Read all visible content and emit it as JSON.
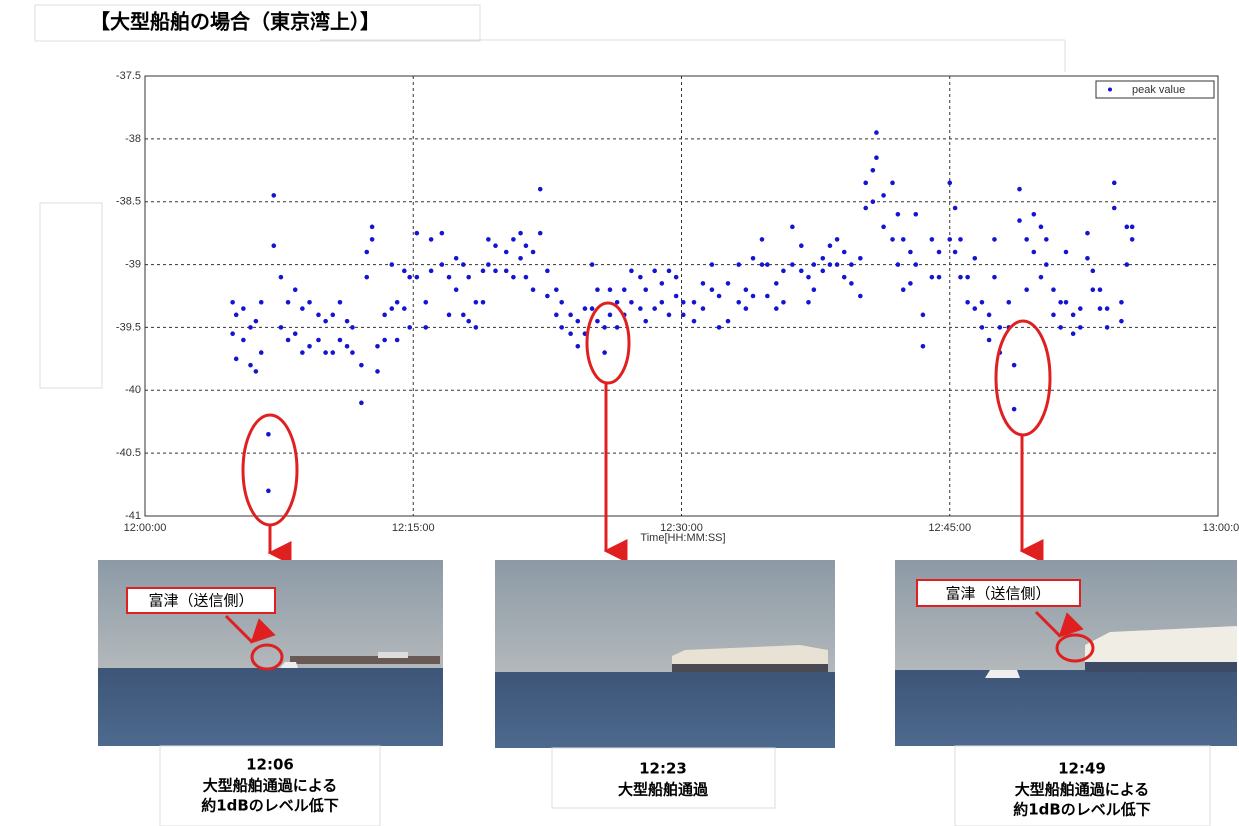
{
  "chart_data": {
    "type": "scatter",
    "title": "【大型船舶の場合（東京湾上）】",
    "x_label": "Time[HH:MM:SS]",
    "xlim": [
      0,
      60
    ],
    "xticks": [
      {
        "value": 0,
        "label": "12:00:00"
      },
      {
        "value": 15,
        "label": "12:15:00"
      },
      {
        "value": 30,
        "label": "12:30:00"
      },
      {
        "value": 45,
        "label": "12:45:00"
      },
      {
        "value": 60,
        "label": "13:00:00"
      }
    ],
    "ylim": [
      -41,
      -37.5
    ],
    "yticks": [
      -41,
      -40.5,
      -40,
      -39.5,
      -39,
      -38.5,
      -38,
      -37.5
    ],
    "grid": true,
    "legend": "upper-right",
    "series": [
      {
        "name": "peak value",
        "color": "#1414d2",
        "x": [
          4.9,
          4.9,
          5.1,
          5.1,
          5.5,
          5.5,
          5.9,
          5.9,
          6.2,
          6.2,
          6.5,
          6.5,
          6.9,
          6.9,
          7.2,
          7.2,
          7.6,
          7.6,
          8.0,
          8.0,
          8.4,
          8.4,
          8.8,
          8.8,
          9.2,
          9.2,
          9.7,
          9.7,
          10.1,
          10.1,
          10.5,
          10.5,
          10.9,
          10.9,
          11.3,
          11.3,
          11.6,
          11.6,
          12.1,
          12.1,
          12.4,
          12.4,
          12.7,
          12.7,
          13.0,
          13.0,
          13.4,
          13.4,
          13.8,
          13.8,
          14.1,
          14.1,
          14.5,
          14.5,
          14.8,
          14.8,
          15.2,
          15.2,
          15.7,
          15.7,
          16.0,
          16.0,
          16.6,
          16.6,
          17.0,
          17.0,
          17.4,
          17.4,
          17.8,
          17.8,
          18.1,
          18.1,
          18.5,
          18.5,
          18.9,
          18.9,
          19.2,
          19.2,
          19.6,
          19.6,
          20.2,
          20.2,
          20.6,
          20.6,
          21.0,
          21.0,
          21.3,
          21.3,
          21.7,
          21.7,
          22.1,
          22.1,
          22.5,
          22.5,
          23.0,
          23.0,
          23.3,
          23.3,
          23.8,
          23.8,
          24.2,
          24.2,
          24.6,
          24.6,
          25.0,
          25.0,
          25.3,
          25.3,
          25.7,
          25.7,
          26.0,
          26.0,
          26.4,
          26.4,
          26.8,
          26.8,
          27.2,
          27.2,
          27.7,
          27.7,
          28.0,
          28.0,
          28.5,
          28.5,
          28.9,
          28.9,
          29.3,
          29.3,
          29.7,
          29.7,
          30.1,
          30.1,
          30.7,
          30.7,
          31.2,
          31.2,
          31.7,
          31.7,
          32.1,
          32.1,
          32.6,
          32.6,
          33.2,
          33.2,
          33.6,
          33.6,
          34.0,
          34.0,
          34.5,
          34.5,
          34.8,
          34.8,
          35.3,
          35.3,
          35.7,
          35.7,
          36.2,
          36.2,
          36.7,
          36.7,
          37.1,
          37.1,
          37.4,
          37.4,
          37.9,
          37.9,
          38.3,
          38.3,
          38.7,
          38.7,
          39.1,
          39.1,
          39.5,
          39.5,
          40.0,
          40.0,
          40.3,
          40.3,
          40.7,
          40.7,
          40.9,
          40.9,
          41.3,
          41.3,
          41.8,
          41.8,
          42.1,
          42.1,
          42.4,
          42.4,
          42.8,
          42.8,
          43.1,
          43.1,
          43.5,
          43.5,
          44.0,
          44.0,
          44.4,
          44.4,
          45.0,
          45.0,
          45.3,
          45.3,
          45.6,
          45.6,
          46.0,
          46.0,
          46.4,
          46.4,
          46.8,
          46.8,
          47.2,
          47.2,
          47.5,
          47.5,
          47.8,
          47.8,
          48.3,
          48.3,
          48.6,
          48.6,
          48.9,
          48.9,
          49.3,
          49.3,
          49.7,
          49.7,
          50.1,
          50.1,
          50.4,
          50.4,
          50.8,
          50.8,
          51.2,
          51.2,
          51.5,
          51.5,
          51.9,
          51.9,
          52.3,
          52.3,
          52.7,
          52.7,
          53.0,
          53.0,
          53.4,
          53.4,
          53.8,
          53.8,
          54.2,
          54.2,
          54.6,
          54.6,
          54.9,
          54.9,
          55.2,
          55.2
        ],
        "values": [
          -39.3,
          -39.55,
          -39.4,
          -39.75,
          -39.35,
          -39.6,
          -39.5,
          -39.8,
          -39.45,
          -39.85,
          -39.3,
          -39.7,
          -40.35,
          -40.8,
          -38.45,
          -38.85,
          -39.1,
          -39.5,
          -39.3,
          -39.6,
          -39.2,
          -39.55,
          -39.35,
          -39.7,
          -39.3,
          -39.65,
          -39.4,
          -39.6,
          -39.45,
          -39.7,
          -39.4,
          -39.7,
          -39.3,
          -39.6,
          -39.45,
          -39.65,
          -39.5,
          -39.7,
          -39.8,
          -40.1,
          -38.9,
          -39.1,
          -38.7,
          -38.8,
          -39.65,
          -39.85,
          -39.4,
          -39.6,
          -39.0,
          -39.35,
          -39.3,
          -39.6,
          -39.05,
          -39.35,
          -39.1,
          -39.5,
          -38.75,
          -39.1,
          -39.3,
          -39.5,
          -38.8,
          -39.05,
          -38.75,
          -39.0,
          -39.1,
          -39.4,
          -38.95,
          -39.2,
          -39.0,
          -39.4,
          -39.1,
          -39.45,
          -39.3,
          -39.5,
          -39.05,
          -39.3,
          -38.8,
          -39.0,
          -38.85,
          -39.05,
          -38.9,
          -39.05,
          -38.8,
          -39.1,
          -38.75,
          -38.95,
          -38.85,
          -39.1,
          -38.9,
          -39.2,
          -38.4,
          -38.75,
          -39.05,
          -39.25,
          -39.2,
          -39.4,
          -39.3,
          -39.5,
          -39.4,
          -39.55,
          -39.45,
          -39.65,
          -39.35,
          -39.55,
          -39.0,
          -39.35,
          -39.2,
          -39.45,
          -39.5,
          -39.7,
          -39.2,
          -39.4,
          -39.3,
          -39.5,
          -39.2,
          -39.4,
          -39.05,
          -39.3,
          -39.1,
          -39.35,
          -39.2,
          -39.45,
          -39.05,
          -39.35,
          -39.15,
          -39.3,
          -39.05,
          -39.4,
          -39.1,
          -39.25,
          -39.3,
          -39.4,
          -39.3,
          -39.45,
          -39.15,
          -39.35,
          -39.0,
          -39.2,
          -39.25,
          -39.5,
          -39.15,
          -39.45,
          -39.0,
          -39.3,
          -39.2,
          -39.35,
          -38.95,
          -39.25,
          -38.8,
          -39.0,
          -39.0,
          -39.25,
          -39.15,
          -39.35,
          -39.05,
          -39.3,
          -38.7,
          -39.0,
          -38.85,
          -39.05,
          -39.1,
          -39.3,
          -39.0,
          -39.2,
          -38.95,
          -39.05,
          -38.85,
          -39.0,
          -38.8,
          -39.0,
          -38.9,
          -39.1,
          -39.0,
          -39.15,
          -38.95,
          -39.25,
          -38.35,
          -38.55,
          -38.25,
          -38.5,
          -37.95,
          -38.15,
          -38.45,
          -38.7,
          -38.35,
          -38.8,
          -38.6,
          -39.0,
          -38.8,
          -39.2,
          -38.9,
          -39.15,
          -38.6,
          -39.0,
          -39.4,
          -39.65,
          -38.8,
          -39.1,
          -38.9,
          -39.1,
          -38.35,
          -38.8,
          -38.55,
          -38.9,
          -38.8,
          -39.1,
          -39.1,
          -39.3,
          -38.95,
          -39.35,
          -39.3,
          -39.5,
          -39.4,
          -39.6,
          -38.8,
          -39.1,
          -39.5,
          -39.7,
          -39.3,
          -39.5,
          -39.8,
          -40.15,
          -38.4,
          -38.65,
          -38.8,
          -39.2,
          -38.6,
          -38.9,
          -38.7,
          -39.1,
          -38.8,
          -39.0,
          -39.2,
          -39.4,
          -39.3,
          -39.5,
          -38.9,
          -39.3,
          -39.4,
          -39.55,
          -39.35,
          -39.5,
          -38.75,
          -38.95,
          -39.05,
          -39.2,
          -39.2,
          -39.35,
          -39.35,
          -39.5,
          -38.35,
          -38.55,
          -39.3,
          -39.45,
          -38.7,
          -39.0,
          -38.7,
          -38.8
        ]
      }
    ]
  },
  "photos": [
    {
      "label": "富津（送信側）",
      "time": "12:06",
      "caption": [
        "大型船舶通過による",
        "約1dBのレベル低下"
      ]
    },
    {
      "time": "12:23",
      "caption": [
        "大型船舶通過"
      ]
    },
    {
      "label": "富津（送信側）",
      "time": "12:49",
      "caption": [
        "大型船舶通過による",
        "約1dBのレベル低下"
      ]
    }
  ]
}
